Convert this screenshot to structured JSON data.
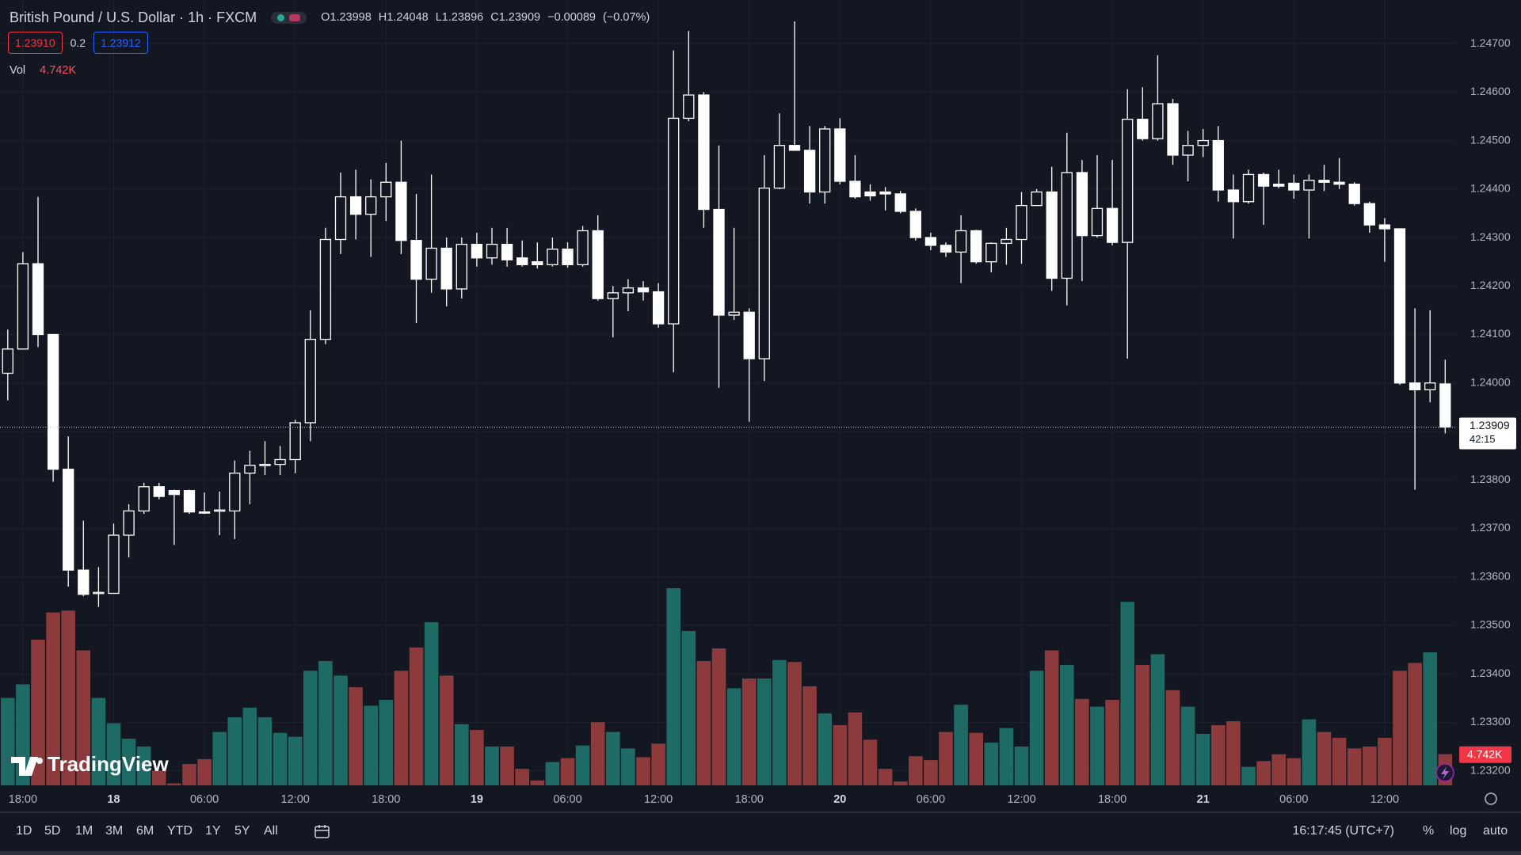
{
  "chart_data": {
    "type": "candlestick",
    "title": "British Pound / U.S. Dollar · 1h · FXCM",
    "categories": [
      null,
      "18:00",
      null,
      null,
      null,
      null,
      null,
      "18",
      null,
      null,
      null,
      null,
      null,
      "06:00",
      null,
      null,
      null,
      null,
      null,
      "12:00",
      null,
      null,
      null,
      null,
      null,
      "18:00",
      null,
      null,
      null,
      null,
      null,
      "19",
      null,
      null,
      null,
      null,
      null,
      "06:00",
      null,
      null,
      null,
      null,
      null,
      "12:00",
      null,
      null,
      null,
      null,
      null,
      "18:00",
      null,
      null,
      null,
      null,
      null,
      "20",
      null,
      null,
      null,
      null,
      null,
      "06:00",
      null,
      null,
      null,
      null,
      null,
      "12:00",
      null,
      null,
      null,
      null,
      null,
      "18:00",
      null,
      null,
      null,
      null,
      null,
      "21",
      null,
      null,
      null,
      null,
      null,
      "06:00",
      null,
      null,
      null,
      null,
      null,
      "12:00",
      null,
      null,
      null,
      null
    ],
    "open": [
      1.2402,
      1.2407,
      1.24246,
      1.241,
      1.23822,
      1.23614,
      1.23566,
      1.23566,
      1.23686,
      1.23736,
      1.23786,
      1.23778,
      1.23778,
      1.23734,
      1.23736,
      1.23736,
      1.23814,
      1.2383,
      1.23832,
      1.23842,
      1.23918,
      1.2409,
      1.24296,
      1.24384,
      1.24348,
      1.24384,
      1.24414,
      1.24294,
      1.24214,
      1.24278,
      1.24194,
      1.24286,
      1.24258,
      1.24286,
      1.24258,
      1.2425,
      1.24244,
      1.24276,
      1.24244,
      1.24314,
      1.24174,
      1.24186,
      1.24196,
      1.24188,
      1.24122,
      1.24546,
      1.24594,
      1.24358,
      1.2414,
      1.24146,
      1.2405,
      1.24402,
      1.2449,
      1.2448,
      1.24394,
      1.24524,
      1.24416,
      1.24394,
      1.24394,
      1.2439,
      1.24354,
      1.243,
      1.24284,
      1.2427,
      1.24314,
      1.2425,
      1.24288,
      1.24296,
      1.24366,
      1.24394,
      1.24216,
      1.24434,
      1.24304,
      1.2436,
      1.2429,
      1.24544,
      1.24504,
      1.24576,
      1.2447,
      1.2449,
      1.245,
      1.24398,
      1.24374,
      1.2443,
      1.2441,
      1.24412,
      1.24398,
      1.24418,
      1.24414,
      1.2441,
      1.2437,
      1.24326,
      1.24318,
      1.24,
      1.23986,
      1.23998
    ],
    "high": [
      1.2411,
      1.2427,
      1.24384,
      1.241,
      1.2389,
      1.23716,
      1.2362,
      1.2371,
      1.2375,
      1.23794,
      1.23794,
      1.2378,
      1.2378,
      1.23774,
      1.23776,
      1.2384,
      1.2386,
      1.2388,
      1.2387,
      1.23924,
      1.2415,
      1.2432,
      1.24434,
      1.2444,
      1.2442,
      1.24454,
      1.245,
      1.2439,
      1.2443,
      1.243,
      1.243,
      1.2431,
      1.2432,
      1.2432,
      1.24294,
      1.2429,
      1.243,
      1.2429,
      1.24324,
      1.24346,
      1.242,
      1.24214,
      1.2421,
      1.24206,
      1.24686,
      1.24726,
      1.246,
      1.2449,
      1.2432,
      1.24154,
      1.2447,
      1.24556,
      1.24746,
      1.2453,
      1.2453,
      1.24546,
      1.2447,
      1.2441,
      1.24404,
      1.24396,
      1.2436,
      1.2431,
      1.2429,
      1.24346,
      1.24316,
      1.2429,
      1.2432,
      1.24394,
      1.244,
      1.24446,
      1.24516,
      1.2446,
      1.2447,
      1.2446,
      1.24606,
      1.2461,
      1.24676,
      1.24586,
      1.2452,
      1.24524,
      1.2453,
      1.2443,
      1.2444,
      1.24434,
      1.2444,
      1.2443,
      1.2443,
      1.2445,
      1.24464,
      1.24414,
      1.24374,
      1.2434,
      1.24318,
      1.24154,
      1.2415,
      1.24048
    ],
    "low": [
      1.23964,
      1.2407,
      1.24074,
      1.23796,
      1.2358,
      1.2356,
      1.23538,
      1.23566,
      1.2364,
      1.2373,
      1.2376,
      1.23666,
      1.2373,
      1.2373,
      1.23686,
      1.23678,
      1.2375,
      1.2381,
      1.2381,
      1.23814,
      1.2388,
      1.2408,
      1.24266,
      1.24296,
      1.2426,
      1.24334,
      1.24266,
      1.24124,
      1.24186,
      1.24158,
      1.24174,
      1.2424,
      1.24244,
      1.2424,
      1.2424,
      1.24236,
      1.2424,
      1.24238,
      1.2424,
      1.2417,
      1.24094,
      1.24148,
      1.2417,
      1.24114,
      1.24022,
      1.2454,
      1.2432,
      1.2399,
      1.2413,
      1.2392,
      1.24004,
      1.244,
      1.2448,
      1.2437,
      1.2437,
      1.2441,
      1.2438,
      1.24376,
      1.24356,
      1.2435,
      1.24294,
      1.24274,
      1.2426,
      1.24206,
      1.24246,
      1.24228,
      1.24244,
      1.24246,
      1.24366,
      1.2419,
      1.2416,
      1.2421,
      1.243,
      1.24284,
      1.2405,
      1.245,
      1.245,
      1.2445,
      1.24416,
      1.24466,
      1.24374,
      1.24298,
      1.2437,
      1.24326,
      1.24402,
      1.2438,
      1.24298,
      1.24396,
      1.244,
      1.24366,
      1.2431,
      1.2425,
      1.23996,
      1.2378,
      1.2396,
      1.23896
    ],
    "close": [
      1.2407,
      1.24246,
      1.241,
      1.23822,
      1.23614,
      1.23564,
      1.23568,
      1.23686,
      1.23736,
      1.23786,
      1.23766,
      1.2377,
      1.23734,
      1.23732,
      1.23738,
      1.23814,
      1.2383,
      1.23832,
      1.23842,
      1.23918,
      1.2409,
      1.24296,
      1.24384,
      1.24348,
      1.24384,
      1.24414,
      1.24294,
      1.24214,
      1.24278,
      1.24194,
      1.24286,
      1.24258,
      1.24286,
      1.24254,
      1.24244,
      1.24244,
      1.24276,
      1.24244,
      1.24314,
      1.24174,
      1.24186,
      1.24196,
      1.24188,
      1.24122,
      1.24546,
      1.24594,
      1.24358,
      1.2414,
      1.24146,
      1.2405,
      1.24402,
      1.2449,
      1.2448,
      1.24394,
      1.24524,
      1.24416,
      1.24384,
      1.24386,
      1.2439,
      1.24354,
      1.243,
      1.24284,
      1.2427,
      1.24314,
      1.2425,
      1.24288,
      1.24296,
      1.24366,
      1.24394,
      1.24216,
      1.24434,
      1.24304,
      1.2436,
      1.2429,
      1.24544,
      1.24504,
      1.24576,
      1.2447,
      1.2449,
      1.245,
      1.24398,
      1.24374,
      1.2443,
      1.24406,
      1.24406,
      1.24398,
      1.24418,
      1.24414,
      1.2441,
      1.2437,
      1.24326,
      1.24318,
      1.24,
      1.23986,
      1.24,
      1.23909
    ],
    "volume": [
      13320,
      15392,
      22200,
      26344,
      26640,
      20572,
      13320,
      9472,
      7104,
      5920,
      2220,
      296,
      3256,
      3996,
      8140,
      10360,
      11840,
      10360,
      7992,
      7400,
      17464,
      18944,
      16724,
      14948,
      12136,
      13024,
      17464,
      21016,
      24864,
      16724,
      9324,
      8436,
      5920,
      5920,
      2516,
      740,
      3552,
      4144,
      6068,
      9620,
      8140,
      5624,
      4292,
      6364,
      30044,
      23532,
      18944,
      20868,
      14800,
      16280,
      16280,
      19092,
      18796,
      15096,
      10952,
      9176,
      11100,
      6956,
      2516,
      592,
      4440,
      3848,
      8140,
      12284,
      7992,
      6512,
      8732,
      5920,
      17464,
      20572,
      18352,
      13172,
      11988,
      13024,
      27972,
      18352,
      19980,
      14504,
      11988,
      7844,
      9176,
      9768,
      2812,
      3700,
      4736,
      4144,
      10064,
      8140,
      7252,
      5624,
      5920,
      7252,
      17464,
      18648,
      20276,
      4742
    ],
    "last_volume_label": "4.742K",
    "countdown": "42:15",
    "ylim": [
      1.2317,
      1.2479
    ],
    "yticks": [
      {
        "value": 1.232,
        "label": "1.23200"
      },
      {
        "value": 1.233,
        "label": "1.23300"
      },
      {
        "value": 1.234,
        "label": "1.23400"
      },
      {
        "value": 1.235,
        "label": "1.23500"
      },
      {
        "value": 1.236,
        "label": "1.23600"
      },
      {
        "value": 1.237,
        "label": "1.23700"
      },
      {
        "value": 1.238,
        "label": "1.23800"
      },
      {
        "value": 1.239,
        "label": "1.23900"
      },
      {
        "value": 1.24,
        "label": "1.24000"
      },
      {
        "value": 1.241,
        "label": "1.24100"
      },
      {
        "value": 1.242,
        "label": "1.24200"
      },
      {
        "value": 1.243,
        "label": "1.24300"
      },
      {
        "value": 1.244,
        "label": "1.24400"
      },
      {
        "value": 1.245,
        "label": "1.24500"
      },
      {
        "value": 1.246,
        "label": "1.24600"
      },
      {
        "value": 1.247,
        "label": "1.24700"
      }
    ],
    "candle_color": "#ffffff",
    "up_volume_color": "#1e6b65",
    "down_volume_color": "#8c3a3b",
    "grid": true,
    "log_scale": false
  },
  "legend": {
    "open": "O",
    "high": "H",
    "low": "L",
    "close": "C",
    "change": "−0.00089",
    "change_pct": "(−0.07%)"
  },
  "quote": {
    "sell": "1.23910",
    "spread": "0.2",
    "buy": "1.23912"
  },
  "volume_legend": "Vol",
  "brand": "TradingView",
  "toolbar": {
    "ranges": [
      "1D",
      "5D",
      "1M",
      "3M",
      "6M",
      "YTD",
      "1Y",
      "5Y",
      "All"
    ],
    "clock": "16:17:45 (UTC+7)",
    "options": [
      "%",
      "log",
      "auto"
    ]
  }
}
